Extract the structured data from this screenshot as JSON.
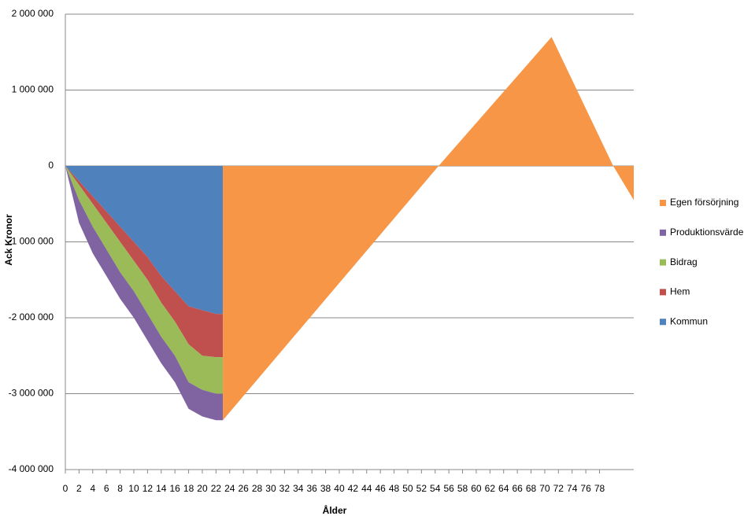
{
  "chart_data": {
    "type": "area",
    "stacked": true,
    "y_label": "Ack Kronor",
    "x_label": "Ålder",
    "x": [
      0,
      2,
      4,
      6,
      8,
      10,
      12,
      14,
      16,
      18,
      20,
      22,
      23
    ],
    "xlim": [
      0,
      83
    ],
    "xticks": [
      0,
      2,
      4,
      6,
      8,
      10,
      12,
      14,
      16,
      18,
      20,
      22,
      24,
      26,
      28,
      30,
      32,
      34,
      36,
      38,
      40,
      42,
      44,
      46,
      48,
      50,
      52,
      54,
      56,
      58,
      60,
      62,
      64,
      66,
      68,
      70,
      72,
      74,
      76,
      78
    ],
    "ylim": [
      -4000000,
      2000000
    ],
    "yticks": [
      {
        "value": -4000000,
        "label": "-4 000 000"
      },
      {
        "value": -3000000,
        "label": "-3 000 000"
      },
      {
        "value": -2000000,
        "label": "-2 000 000"
      },
      {
        "value": -1000000,
        "label": "-1 000 000"
      },
      0,
      {
        "value": 1000000,
        "label": "1 000 000"
      },
      {
        "value": 2000000,
        "label": "2 000 000"
      }
    ],
    "grid": true,
    "series": [
      {
        "name": "Egen försörjning",
        "color": "#f79646",
        "x": [
          23,
          54.5,
          71,
          80,
          83
        ],
        "values": [
          -3350000,
          0,
          1700000,
          0,
          -450000
        ]
      },
      {
        "name": "Produktionsvärde",
        "color": "#8064a2",
        "values": [
          0,
          -300000,
          -350000,
          -350000,
          -350000,
          -350000,
          -350000,
          -350000,
          -350000,
          -350000,
          -350000,
          -350000,
          -350000
        ]
      },
      {
        "name": "Bidrag",
        "color": "#9bbb59",
        "values": [
          0,
          -200000,
          -300000,
          -350000,
          -400000,
          -400000,
          -450000,
          -450000,
          -450000,
          -500000,
          -450000,
          -480000,
          -480000
        ]
      },
      {
        "name": "Hem",
        "color": "#c0504d",
        "values": [
          0,
          -50000,
          -100000,
          -150000,
          -200000,
          -250000,
          -300000,
          -350000,
          -400000,
          -500000,
          -600000,
          -570000,
          -570000
        ]
      },
      {
        "name": "Kommun",
        "color": "#4f81bd",
        "values": [
          0,
          -200000,
          -400000,
          -600000,
          -800000,
          -1000000,
          -1200000,
          -1450000,
          -1650000,
          -1850000,
          -1900000,
          -1950000,
          -1950000
        ]
      }
    ]
  }
}
